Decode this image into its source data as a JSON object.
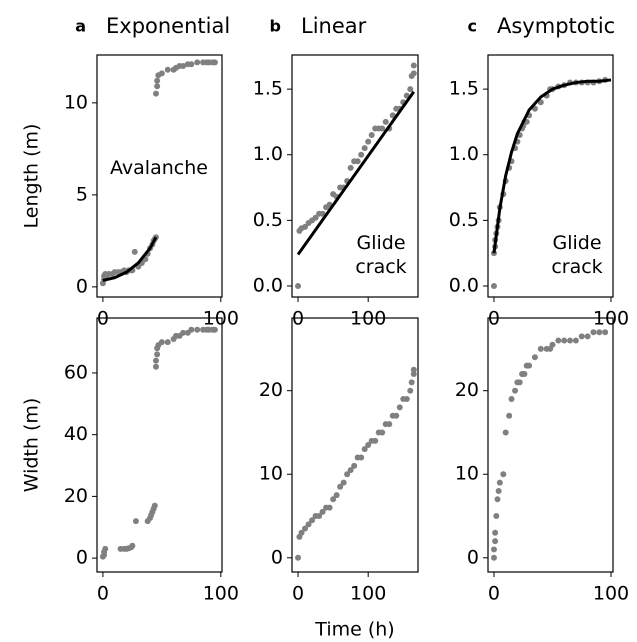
{
  "chart_data": [
    {
      "type": "scatter",
      "panel": "a",
      "title": "Exponential",
      "ylabel": "Length (m)",
      "annotation": "Avalanche",
      "color": "#808080",
      "x": [
        0,
        1,
        1,
        2,
        3,
        5,
        8,
        10,
        13,
        15,
        18,
        20,
        22,
        24,
        25,
        27,
        30,
        33,
        36,
        38,
        40,
        42,
        43,
        44,
        45,
        45,
        46,
        46,
        47,
        50,
        55,
        60,
        62,
        65,
        68,
        72,
        75,
        80,
        85,
        88,
        90,
        93,
        95
      ],
      "values": [
        0.2,
        0.4,
        0.6,
        0.7,
        0.5,
        0.7,
        0.7,
        0.8,
        0.8,
        0.8,
        0.9,
        0.8,
        0.9,
        0.9,
        0.9,
        1.9,
        1.1,
        1.3,
        1.5,
        1.8,
        2.1,
        2.3,
        2.5,
        2.6,
        2.7,
        10.5,
        10.9,
        11.2,
        11.5,
        11.6,
        11.8,
        11.8,
        11.9,
        12.0,
        12.0,
        12.1,
        12.1,
        12.2,
        12.2,
        12.2,
        12.2,
        12.2,
        12.2
      ],
      "fit": {
        "x": [
          0,
          10,
          20,
          30,
          35,
          40,
          45
        ],
        "values": [
          0.35,
          0.5,
          0.8,
          1.3,
          1.7,
          2.1,
          2.7
        ],
        "color": "#000000"
      },
      "xlim": [
        -5,
        101
      ],
      "xticks": [
        0,
        100
      ],
      "ylim": [
        -0.55,
        12.6
      ],
      "yticks": [
        0,
        5,
        10
      ]
    },
    {
      "type": "scatter",
      "panel": "b",
      "title": "Linear",
      "annotation": "Glide crack",
      "color": "#808080",
      "x": [
        0,
        2,
        5,
        10,
        15,
        20,
        25,
        30,
        35,
        40,
        45,
        50,
        55,
        60,
        65,
        70,
        75,
        80,
        85,
        90,
        95,
        100,
        105,
        110,
        115,
        120,
        125,
        130,
        135,
        140,
        145,
        150,
        155,
        160,
        162,
        165,
        165
      ],
      "values": [
        0,
        0.42,
        0.44,
        0.45,
        0.48,
        0.5,
        0.52,
        0.55,
        0.55,
        0.6,
        0.62,
        0.7,
        0.68,
        0.75,
        0.75,
        0.8,
        0.9,
        0.95,
        0.95,
        1.0,
        1.05,
        1.1,
        1.15,
        1.2,
        1.2,
        1.2,
        1.25,
        1.2,
        1.3,
        1.35,
        1.35,
        1.4,
        1.45,
        1.5,
        1.6,
        1.68,
        1.62
      ],
      "fit": {
        "x": [
          0,
          165
        ],
        "values": [
          0.24,
          1.48
        ],
        "color": "#000000"
      },
      "xlim": [
        -8.6,
        171
      ],
      "xticks": [
        0,
        100
      ],
      "ylim": [
        -0.084,
        1.76
      ],
      "yticks": [
        {
          "value": 0,
          "label": "0.0"
        },
        0.5,
        {
          "value": 1,
          "label": "1.0"
        },
        1.5
      ]
    },
    {
      "type": "scatter",
      "panel": "c",
      "title": "Asymptotic",
      "annotation": "Glide crack",
      "color": "#808080",
      "x": [
        0,
        0,
        1,
        1,
        2,
        3,
        4,
        5,
        8,
        10,
        13,
        15,
        18,
        20,
        22,
        24,
        25,
        26,
        28,
        30,
        35,
        40,
        45,
        48,
        50,
        55,
        60,
        65,
        70,
        75,
        80,
        85,
        90,
        95
      ],
      "values": [
        0,
        0.25,
        0.3,
        0.35,
        0.4,
        0.45,
        0.5,
        0.6,
        0.7,
        0.8,
        0.9,
        0.95,
        1.05,
        1.1,
        1.15,
        1.2,
        1.22,
        1.25,
        1.25,
        1.3,
        1.35,
        1.4,
        1.45,
        1.5,
        1.5,
        1.52,
        1.53,
        1.55,
        1.55,
        1.55,
        1.55,
        1.55,
        1.56,
        1.57
      ],
      "fit": {
        "x": [
          0,
          5,
          10,
          15,
          20,
          30,
          40,
          50,
          60,
          70,
          80,
          90,
          100
        ],
        "values": [
          0.25,
          0.59,
          0.84,
          1.02,
          1.16,
          1.34,
          1.44,
          1.5,
          1.53,
          1.55,
          1.56,
          1.56,
          1.57
        ],
        "color": "#000000"
      },
      "xlim": [
        -5.1,
        101.7
      ],
      "xticks": [
        0,
        100
      ],
      "ylim": [
        -0.084,
        1.76
      ],
      "yticks": [
        {
          "value": 0,
          "label": "0.0"
        },
        0.5,
        {
          "value": 1,
          "label": "1.0"
        },
        1.5
      ]
    },
    {
      "type": "scatter",
      "ylabel": "Width (m)",
      "color": "#808080",
      "x": [
        0,
        1,
        1,
        2,
        15,
        18,
        20,
        22,
        24,
        25,
        28,
        38,
        40,
        41,
        42,
        43,
        44,
        45,
        45,
        46,
        46,
        47,
        50,
        55,
        60,
        62,
        65,
        68,
        72,
        75,
        80,
        85,
        88,
        90,
        93,
        95
      ],
      "values": [
        0.5,
        1,
        2,
        3,
        3,
        3,
        3,
        3.2,
        3.5,
        4,
        12,
        12,
        13,
        14,
        15,
        16,
        17,
        62,
        64,
        66,
        68,
        69,
        70,
        70,
        71,
        72,
        72,
        73,
        73,
        74,
        74,
        74,
        74,
        74,
        74,
        74
      ],
      "xlim": [
        -5,
        101
      ],
      "xticks": [
        0,
        100
      ],
      "ylim": [
        -4.5,
        77.8
      ],
      "yticks": [
        0,
        20,
        40,
        60
      ]
    },
    {
      "type": "scatter",
      "xlabel": "Time (h)",
      "color": "#808080",
      "x": [
        0,
        2,
        5,
        10,
        15,
        20,
        25,
        30,
        35,
        40,
        45,
        50,
        55,
        60,
        65,
        70,
        75,
        80,
        85,
        90,
        95,
        100,
        105,
        110,
        115,
        120,
        125,
        130,
        135,
        140,
        145,
        150,
        155,
        160,
        162,
        165,
        165
      ],
      "values": [
        0,
        2.5,
        3,
        3.5,
        4,
        4.5,
        5,
        5,
        5.5,
        6,
        6,
        7,
        7.5,
        8.5,
        9,
        10,
        10.5,
        11,
        12,
        12,
        13,
        13.5,
        14,
        14,
        15,
        15,
        16,
        16,
        17,
        17,
        18,
        19,
        19,
        20,
        21,
        22,
        22.5
      ],
      "xlim": [
        -8.6,
        171
      ],
      "xticks": [
        0,
        100
      ],
      "ylim": [
        -1.7,
        28.7
      ],
      "yticks": [
        0,
        10,
        20
      ]
    },
    {
      "type": "scatter",
      "color": "#808080",
      "x": [
        0,
        0,
        1,
        1,
        2,
        3,
        4,
        5,
        8,
        10,
        13,
        15,
        18,
        20,
        22,
        24,
        25,
        26,
        28,
        30,
        35,
        40,
        45,
        48,
        50,
        55,
        60,
        65,
        70,
        75,
        80,
        85,
        90,
        95
      ],
      "values": [
        0,
        1,
        2,
        3,
        5,
        7,
        8,
        9,
        10,
        15,
        17,
        19,
        20,
        21,
        21,
        22,
        22,
        22,
        23,
        23,
        24,
        25,
        25,
        25,
        25.5,
        26,
        26,
        26,
        26,
        26.5,
        26.5,
        27,
        27,
        27
      ],
      "xlim": [
        -5.1,
        101.7
      ],
      "xticks": [
        0,
        100
      ],
      "ylim": [
        -1.7,
        28.7
      ],
      "yticks": [
        0,
        10,
        20
      ]
    }
  ]
}
